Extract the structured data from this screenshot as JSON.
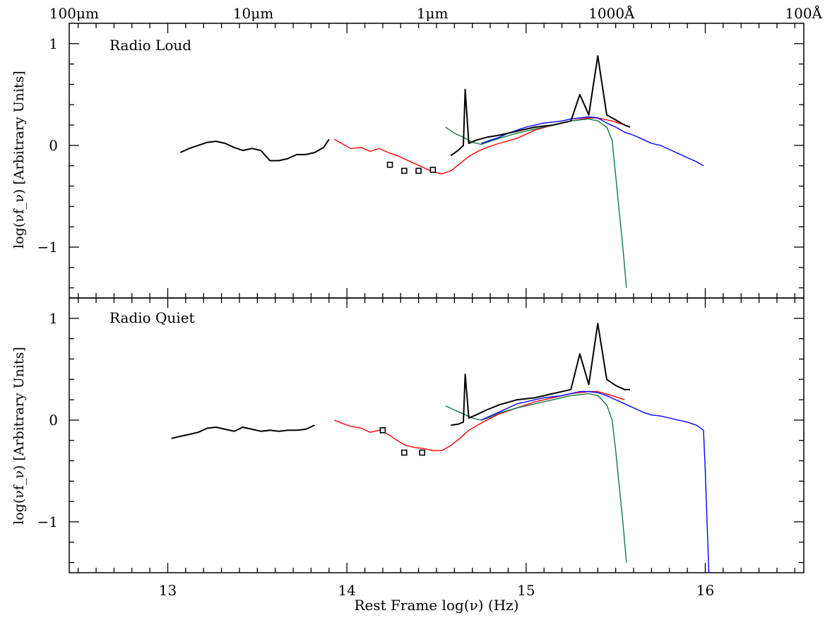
{
  "chart_data": [
    {
      "type": "line",
      "panel": "top",
      "annotation": "Radio Loud",
      "ylabel": "log(νf_ν) [Arbitrary Units]",
      "xlim": [
        12.45,
        16.55
      ],
      "ylim": [
        -1.5,
        1.2
      ],
      "y_ticks": [
        1,
        0,
        -1
      ],
      "y_tick_labels": [
        "1",
        "0",
        "−1"
      ],
      "series": [
        {
          "color": "#000000",
          "x": [
            13.07,
            13.12,
            13.17,
            13.22,
            13.27,
            13.32,
            13.37,
            13.42,
            13.47,
            13.52,
            13.57,
            13.62,
            13.67,
            13.72,
            13.77,
            13.82,
            13.87,
            13.9
          ],
          "y": [
            -0.07,
            -0.03,
            0.0,
            0.03,
            0.04,
            0.02,
            -0.02,
            -0.05,
            -0.03,
            -0.05,
            -0.15,
            -0.15,
            -0.13,
            -0.09,
            -0.09,
            -0.07,
            -0.02,
            0.06
          ]
        },
        {
          "color": "#ff0000",
          "x": [
            13.93,
            13.97,
            14.02,
            14.08,
            14.13,
            14.18,
            14.23,
            14.28,
            14.33,
            14.38,
            14.43,
            14.48,
            14.53,
            14.58,
            14.63,
            14.68,
            14.73,
            14.78,
            14.85,
            14.95,
            15.05,
            15.15,
            15.25,
            15.35,
            15.4,
            15.48,
            15.55
          ],
          "y": [
            0.06,
            0.02,
            -0.03,
            -0.02,
            -0.06,
            -0.03,
            -0.07,
            -0.1,
            -0.14,
            -0.18,
            -0.22,
            -0.26,
            -0.28,
            -0.25,
            -0.18,
            -0.11,
            -0.06,
            -0.02,
            0.02,
            0.07,
            0.15,
            0.2,
            0.24,
            0.27,
            0.27,
            0.24,
            0.2
          ]
        },
        {
          "color": "#117a44",
          "x": [
            14.55,
            14.6,
            14.65,
            14.7,
            14.75,
            14.8,
            14.85,
            14.95,
            15.05,
            15.15,
            15.25,
            15.35,
            15.4,
            15.45,
            15.48,
            15.5,
            15.52,
            15.54,
            15.56
          ],
          "y": [
            0.18,
            0.12,
            0.08,
            0.03,
            0.01,
            0.04,
            0.07,
            0.12,
            0.16,
            0.2,
            0.24,
            0.26,
            0.24,
            0.18,
            0.05,
            -0.3,
            -0.65,
            -1.0,
            -1.4
          ]
        },
        {
          "color": "#0000ff",
          "x": [
            14.75,
            14.8,
            14.85,
            14.9,
            14.95,
            15.0,
            15.05,
            15.1,
            15.15,
            15.2,
            15.25,
            15.3,
            15.35,
            15.4,
            15.45,
            15.5,
            15.55,
            15.6,
            15.65,
            15.7,
            15.75,
            15.8,
            15.85,
            15.9,
            15.95,
            15.99
          ],
          "y": [
            0.02,
            0.05,
            0.08,
            0.12,
            0.15,
            0.18,
            0.2,
            0.22,
            0.23,
            0.24,
            0.26,
            0.27,
            0.28,
            0.27,
            0.22,
            0.18,
            0.13,
            0.1,
            0.06,
            0.02,
            0.0,
            -0.04,
            -0.08,
            -0.12,
            -0.16,
            -0.2
          ]
        },
        {
          "color": "#000000",
          "x": [
            14.58,
            14.62,
            14.65,
            14.66,
            14.68,
            14.72,
            14.78,
            14.85,
            14.95,
            15.05,
            15.15,
            15.25,
            15.3,
            15.35,
            15.4,
            15.45,
            15.5,
            15.55,
            15.58
          ],
          "y": [
            -0.1,
            -0.05,
            0.0,
            0.55,
            0.02,
            0.05,
            0.08,
            0.1,
            0.14,
            0.18,
            0.2,
            0.24,
            0.5,
            0.3,
            0.88,
            0.3,
            0.25,
            0.2,
            0.18
          ]
        }
      ],
      "markers": {
        "x": [
          14.24,
          14.32,
          14.4,
          14.48
        ],
        "y": [
          -0.19,
          -0.25,
          -0.25,
          -0.24
        ]
      }
    },
    {
      "type": "line",
      "panel": "bottom",
      "annotation": "Radio Quiet",
      "ylabel": "log(νf_ν) [Arbitrary Units]",
      "xlabel": "Rest Frame  log(ν)  (Hz)",
      "xlim": [
        12.45,
        16.55
      ],
      "ylim": [
        -1.5,
        1.2
      ],
      "x_ticks": [
        13,
        14,
        15,
        16
      ],
      "x_tick_labels": [
        "13",
        "14",
        "15",
        "16"
      ],
      "y_ticks": [
        1,
        0,
        -1
      ],
      "y_tick_labels": [
        "1",
        "0",
        "−1"
      ],
      "series": [
        {
          "color": "#000000",
          "x": [
            13.02,
            13.07,
            13.12,
            13.17,
            13.22,
            13.27,
            13.32,
            13.37,
            13.42,
            13.47,
            13.52,
            13.57,
            13.62,
            13.67,
            13.72,
            13.77,
            13.82
          ],
          "y": [
            -0.18,
            -0.16,
            -0.14,
            -0.12,
            -0.08,
            -0.07,
            -0.09,
            -0.11,
            -0.07,
            -0.09,
            -0.11,
            -0.1,
            -0.11,
            -0.1,
            -0.1,
            -0.09,
            -0.05
          ]
        },
        {
          "color": "#ff0000",
          "x": [
            13.93,
            13.97,
            14.02,
            14.08,
            14.13,
            14.18,
            14.23,
            14.28,
            14.33,
            14.38,
            14.43,
            14.48,
            14.53,
            14.58,
            14.63,
            14.68,
            14.73,
            14.78,
            14.85,
            14.95,
            15.05,
            15.15,
            15.25,
            15.35,
            15.4,
            15.48,
            15.55
          ],
          "y": [
            0.0,
            -0.03,
            -0.06,
            -0.08,
            -0.12,
            -0.1,
            -0.14,
            -0.2,
            -0.25,
            -0.27,
            -0.28,
            -0.3,
            -0.3,
            -0.25,
            -0.18,
            -0.1,
            -0.05,
            0.0,
            0.06,
            0.12,
            0.18,
            0.22,
            0.26,
            0.28,
            0.28,
            0.24,
            0.2
          ]
        },
        {
          "color": "#117a44",
          "x": [
            14.55,
            14.6,
            14.65,
            14.7,
            14.75,
            14.8,
            14.85,
            14.95,
            15.05,
            15.15,
            15.25,
            15.35,
            15.4,
            15.45,
            15.48,
            15.5,
            15.52,
            15.54,
            15.56
          ],
          "y": [
            0.14,
            0.1,
            0.06,
            0.02,
            0.0,
            0.03,
            0.07,
            0.12,
            0.16,
            0.2,
            0.24,
            0.26,
            0.24,
            0.15,
            0.0,
            -0.3,
            -0.65,
            -1.0,
            -1.4
          ]
        },
        {
          "color": "#0000ff",
          "x": [
            14.75,
            14.8,
            14.85,
            14.9,
            14.95,
            15.0,
            15.05,
            15.1,
            15.15,
            15.2,
            15.25,
            15.3,
            15.35,
            15.4,
            15.45,
            15.5,
            15.55,
            15.6,
            15.65,
            15.7,
            15.75,
            15.8,
            15.85,
            15.9,
            15.95,
            15.99,
            16.0,
            16.01,
            16.02
          ],
          "y": [
            0.0,
            0.04,
            0.08,
            0.12,
            0.16,
            0.18,
            0.2,
            0.22,
            0.23,
            0.24,
            0.26,
            0.28,
            0.28,
            0.27,
            0.24,
            0.2,
            0.16,
            0.12,
            0.08,
            0.05,
            0.04,
            0.02,
            0.0,
            -0.02,
            -0.05,
            -0.1,
            -0.5,
            -1.0,
            -1.5
          ]
        },
        {
          "color": "#000000",
          "x": [
            14.58,
            14.62,
            14.65,
            14.66,
            14.68,
            14.72,
            14.78,
            14.85,
            14.95,
            15.05,
            15.15,
            15.25,
            15.3,
            15.35,
            15.4,
            15.45,
            15.5,
            15.55,
            15.58
          ],
          "y": [
            -0.05,
            -0.04,
            -0.02,
            0.45,
            0.02,
            0.05,
            0.1,
            0.15,
            0.2,
            0.22,
            0.26,
            0.3,
            0.65,
            0.35,
            0.95,
            0.4,
            0.34,
            0.3,
            0.3
          ]
        }
      ],
      "markers": {
        "x": [
          14.2,
          14.32,
          14.42
        ],
        "y": [
          -0.1,
          -0.32,
          -0.32
        ]
      }
    }
  ],
  "top_axis": {
    "ticks": [
      12.477,
      13.477,
      14.477,
      15.477,
      16.477
    ],
    "labels": [
      "100μm",
      "10μm",
      "1μm",
      "1000Å",
      "100Å"
    ]
  }
}
